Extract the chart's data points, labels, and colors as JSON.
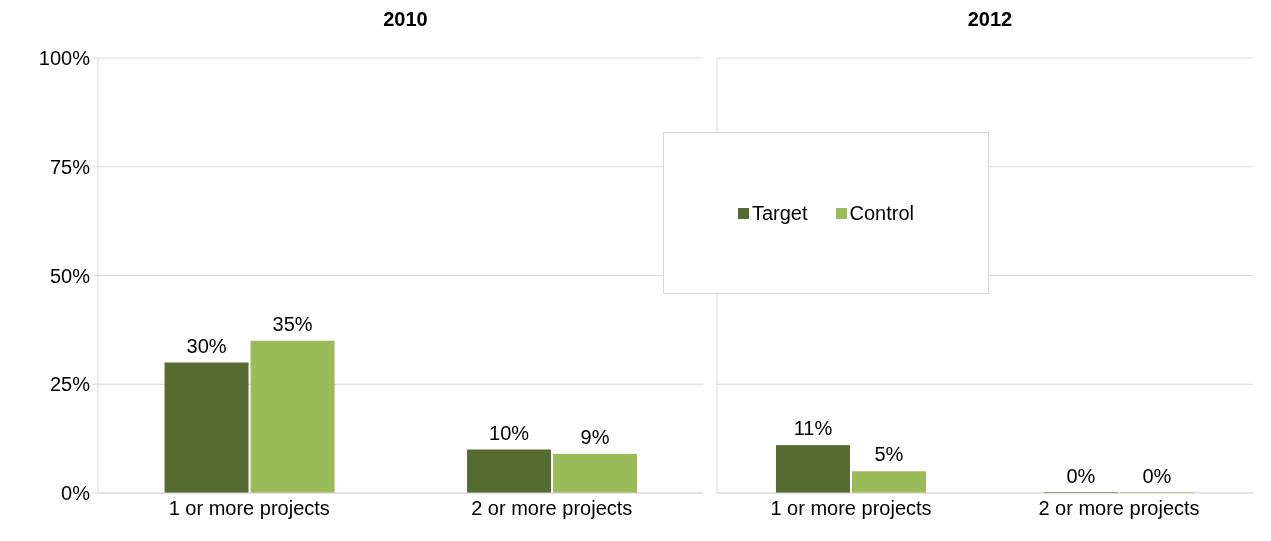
{
  "chart_data": [
    {
      "type": "bar",
      "title": "2010",
      "categories": [
        "1 or more projects",
        "2 or more projects"
      ],
      "series": [
        {
          "color": "#556b2f",
          "values": [
            30,
            10
          ],
          "value_labels": [
            "30%",
            "10%"
          ]
        },
        {
          "color": "#9bbb59",
          "values": [
            35,
            9
          ],
          "value_labels": [
            "35%",
            "9%"
          ]
        }
      ],
      "ylim": [
        0,
        100
      ],
      "yticks": [
        {
          "value": 0,
          "label": "0%"
        },
        {
          "value": 25,
          "label": "25%"
        },
        {
          "value": 50,
          "label": "50%"
        },
        {
          "value": 75,
          "label": "75%"
        },
        {
          "value": 100,
          "label": "100%"
        }
      ],
      "grid": "y"
    },
    {
      "type": "bar",
      "title": "2012",
      "categories": [
        "1 or more projects",
        "2 or more projects"
      ],
      "series": [
        {
          "name": "Target",
          "color": "#556b2f",
          "values": [
            11,
            0
          ],
          "value_labels": [
            "11%",
            "0%"
          ]
        },
        {
          "name": "Control",
          "color": "#9bbb59",
          "values": [
            5,
            0
          ],
          "value_labels": [
            "5%",
            "0%"
          ]
        }
      ],
      "ylim": [
        0,
        100
      ],
      "yticks": [
        0,
        25,
        50,
        75,
        100
      ],
      "grid": "y",
      "legend": "top left",
      "tick_labels": "x"
    }
  ]
}
